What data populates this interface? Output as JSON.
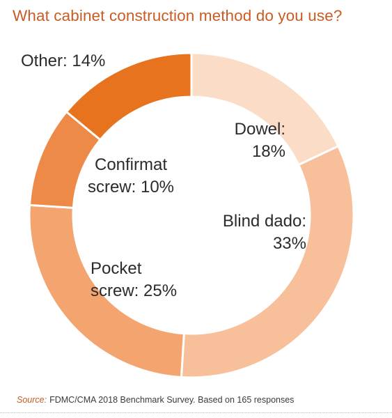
{
  "title": "What cabinet construction method do you use?",
  "chart_data": {
    "type": "pie",
    "donut": true,
    "title": "What cabinet construction method do you use?",
    "slices": [
      {
        "name": "Dowel",
        "value": 18,
        "color": "#fbdcc6",
        "label_lines": [
          "Dowel:",
          "18%"
        ]
      },
      {
        "name": "Blind dado",
        "value": 33,
        "color": "#f8c09a",
        "label_lines": [
          "Blind dado:",
          "33%"
        ]
      },
      {
        "name": "Pocket screw",
        "value": 25,
        "color": "#f3a46f",
        "label_lines": [
          "Pocket",
          "screw: 25%"
        ]
      },
      {
        "name": "Confirmat screw",
        "value": 10,
        "color": "#ee8a47",
        "label_lines": [
          "Confirmat",
          "screw: 10%"
        ]
      },
      {
        "name": "Other",
        "value": 14,
        "color": "#e8731f",
        "label_lines": [
          "Other: 14%"
        ]
      }
    ]
  },
  "source": {
    "label": "Source:",
    "text": "FDMC/CMA 2018 Benchmark Survey. Based on 165 responses"
  }
}
